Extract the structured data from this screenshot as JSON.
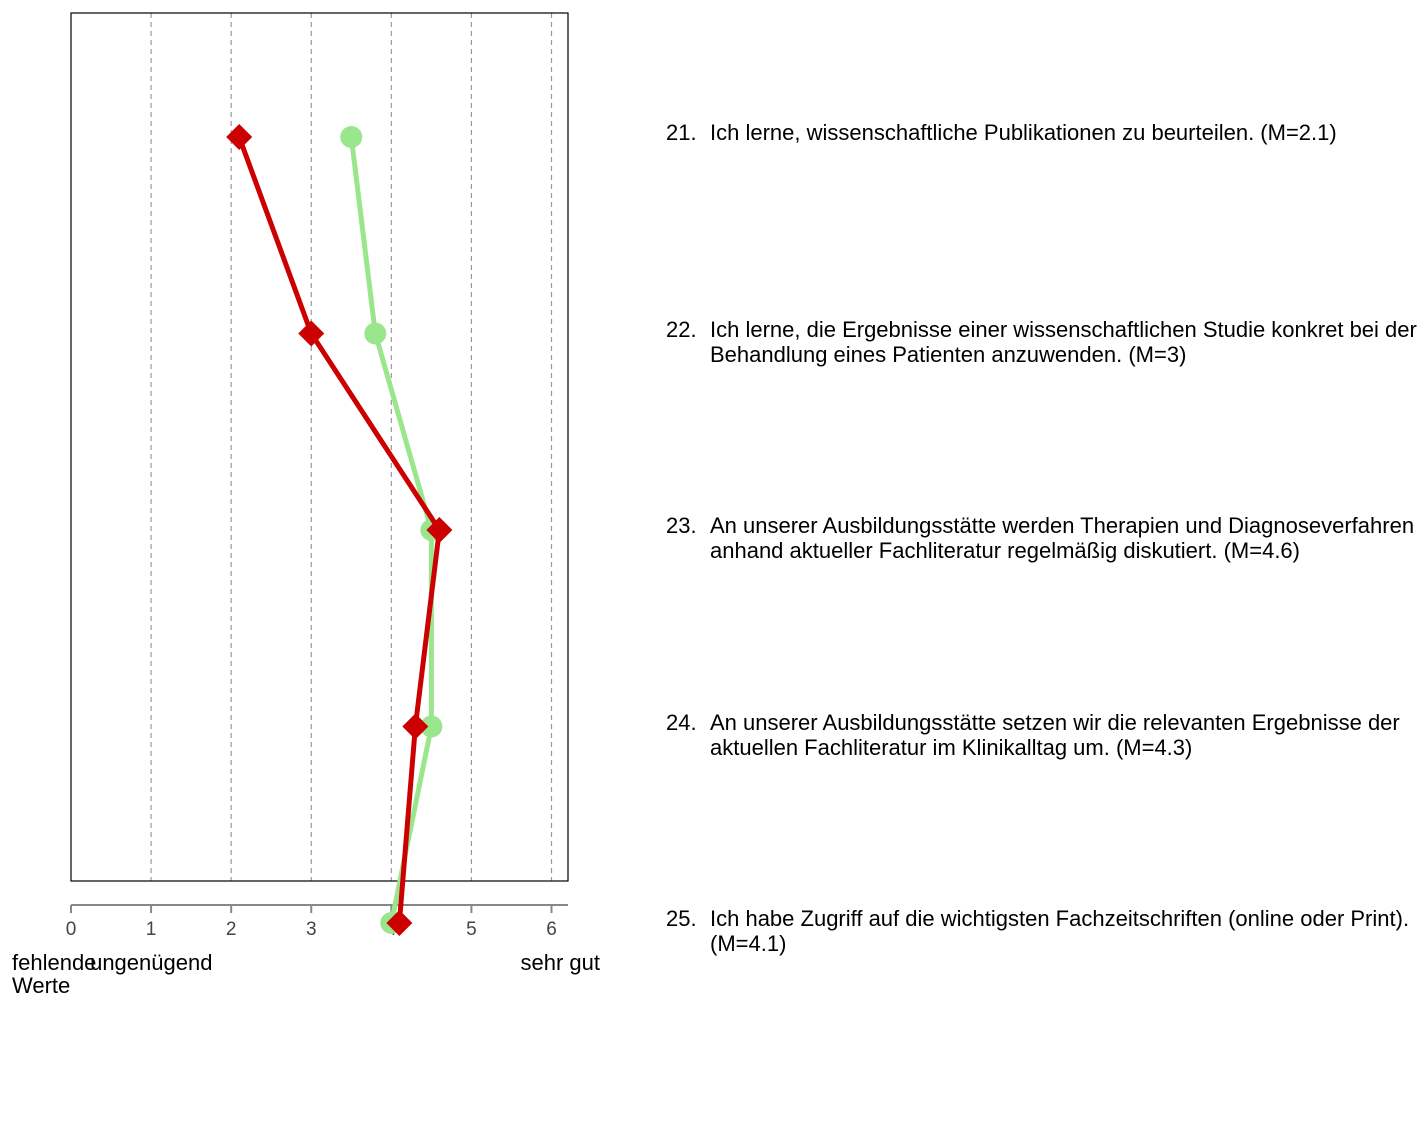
{
  "chart_data": {
    "type": "line",
    "orientation": "horizontal-values",
    "x_axis": {
      "range": [
        0,
        6
      ],
      "ticks": [
        "0",
        "1",
        "2",
        "3",
        "4",
        "5",
        "6"
      ],
      "anchors": [
        {
          "value": 0,
          "label": "fehlende\nWerte"
        },
        {
          "value": 1,
          "label": "ungenügend"
        },
        {
          "value": 6,
          "label": "sehr gut"
        }
      ]
    },
    "grid": "vertical dashed at each integer",
    "series": [
      {
        "color": "#99e68c",
        "marker": "circle",
        "values": [
          3.5,
          3.8,
          4.5,
          4.5,
          4.0
        ]
      },
      {
        "color": "#cc0000",
        "marker": "diamond",
        "values": [
          2.1,
          3.0,
          4.6,
          4.3,
          4.1
        ]
      }
    ],
    "items": [
      {
        "num": "21.",
        "text": "Ich lerne, wissenschaftliche Publikationen zu beurteilen. (M=2.1)"
      },
      {
        "num": "22.",
        "text": "Ich lerne, die Ergebnisse einer wissenschaftlichen Studie konkret bei der Behandlung eines Patienten anzuwenden. (M=3)"
      },
      {
        "num": "23.",
        "text": "An unserer Ausbildungsstätte werden Therapien und Diagnoseverfahren anhand aktueller Fachliteratur regelmäßig diskutiert. (M=4.6)"
      },
      {
        "num": "24.",
        "text": "An unserer Ausbildungsstätte setzen wir die relevanten Ergebnisse der aktuellen Fachliteratur im Klinikalltag um. (M=4.3)"
      },
      {
        "num": "25.",
        "text": "Ich habe Zugriff auf die wichtigsten Fachzeitschriften (online oder Print). (M=4.1)"
      }
    ]
  }
}
